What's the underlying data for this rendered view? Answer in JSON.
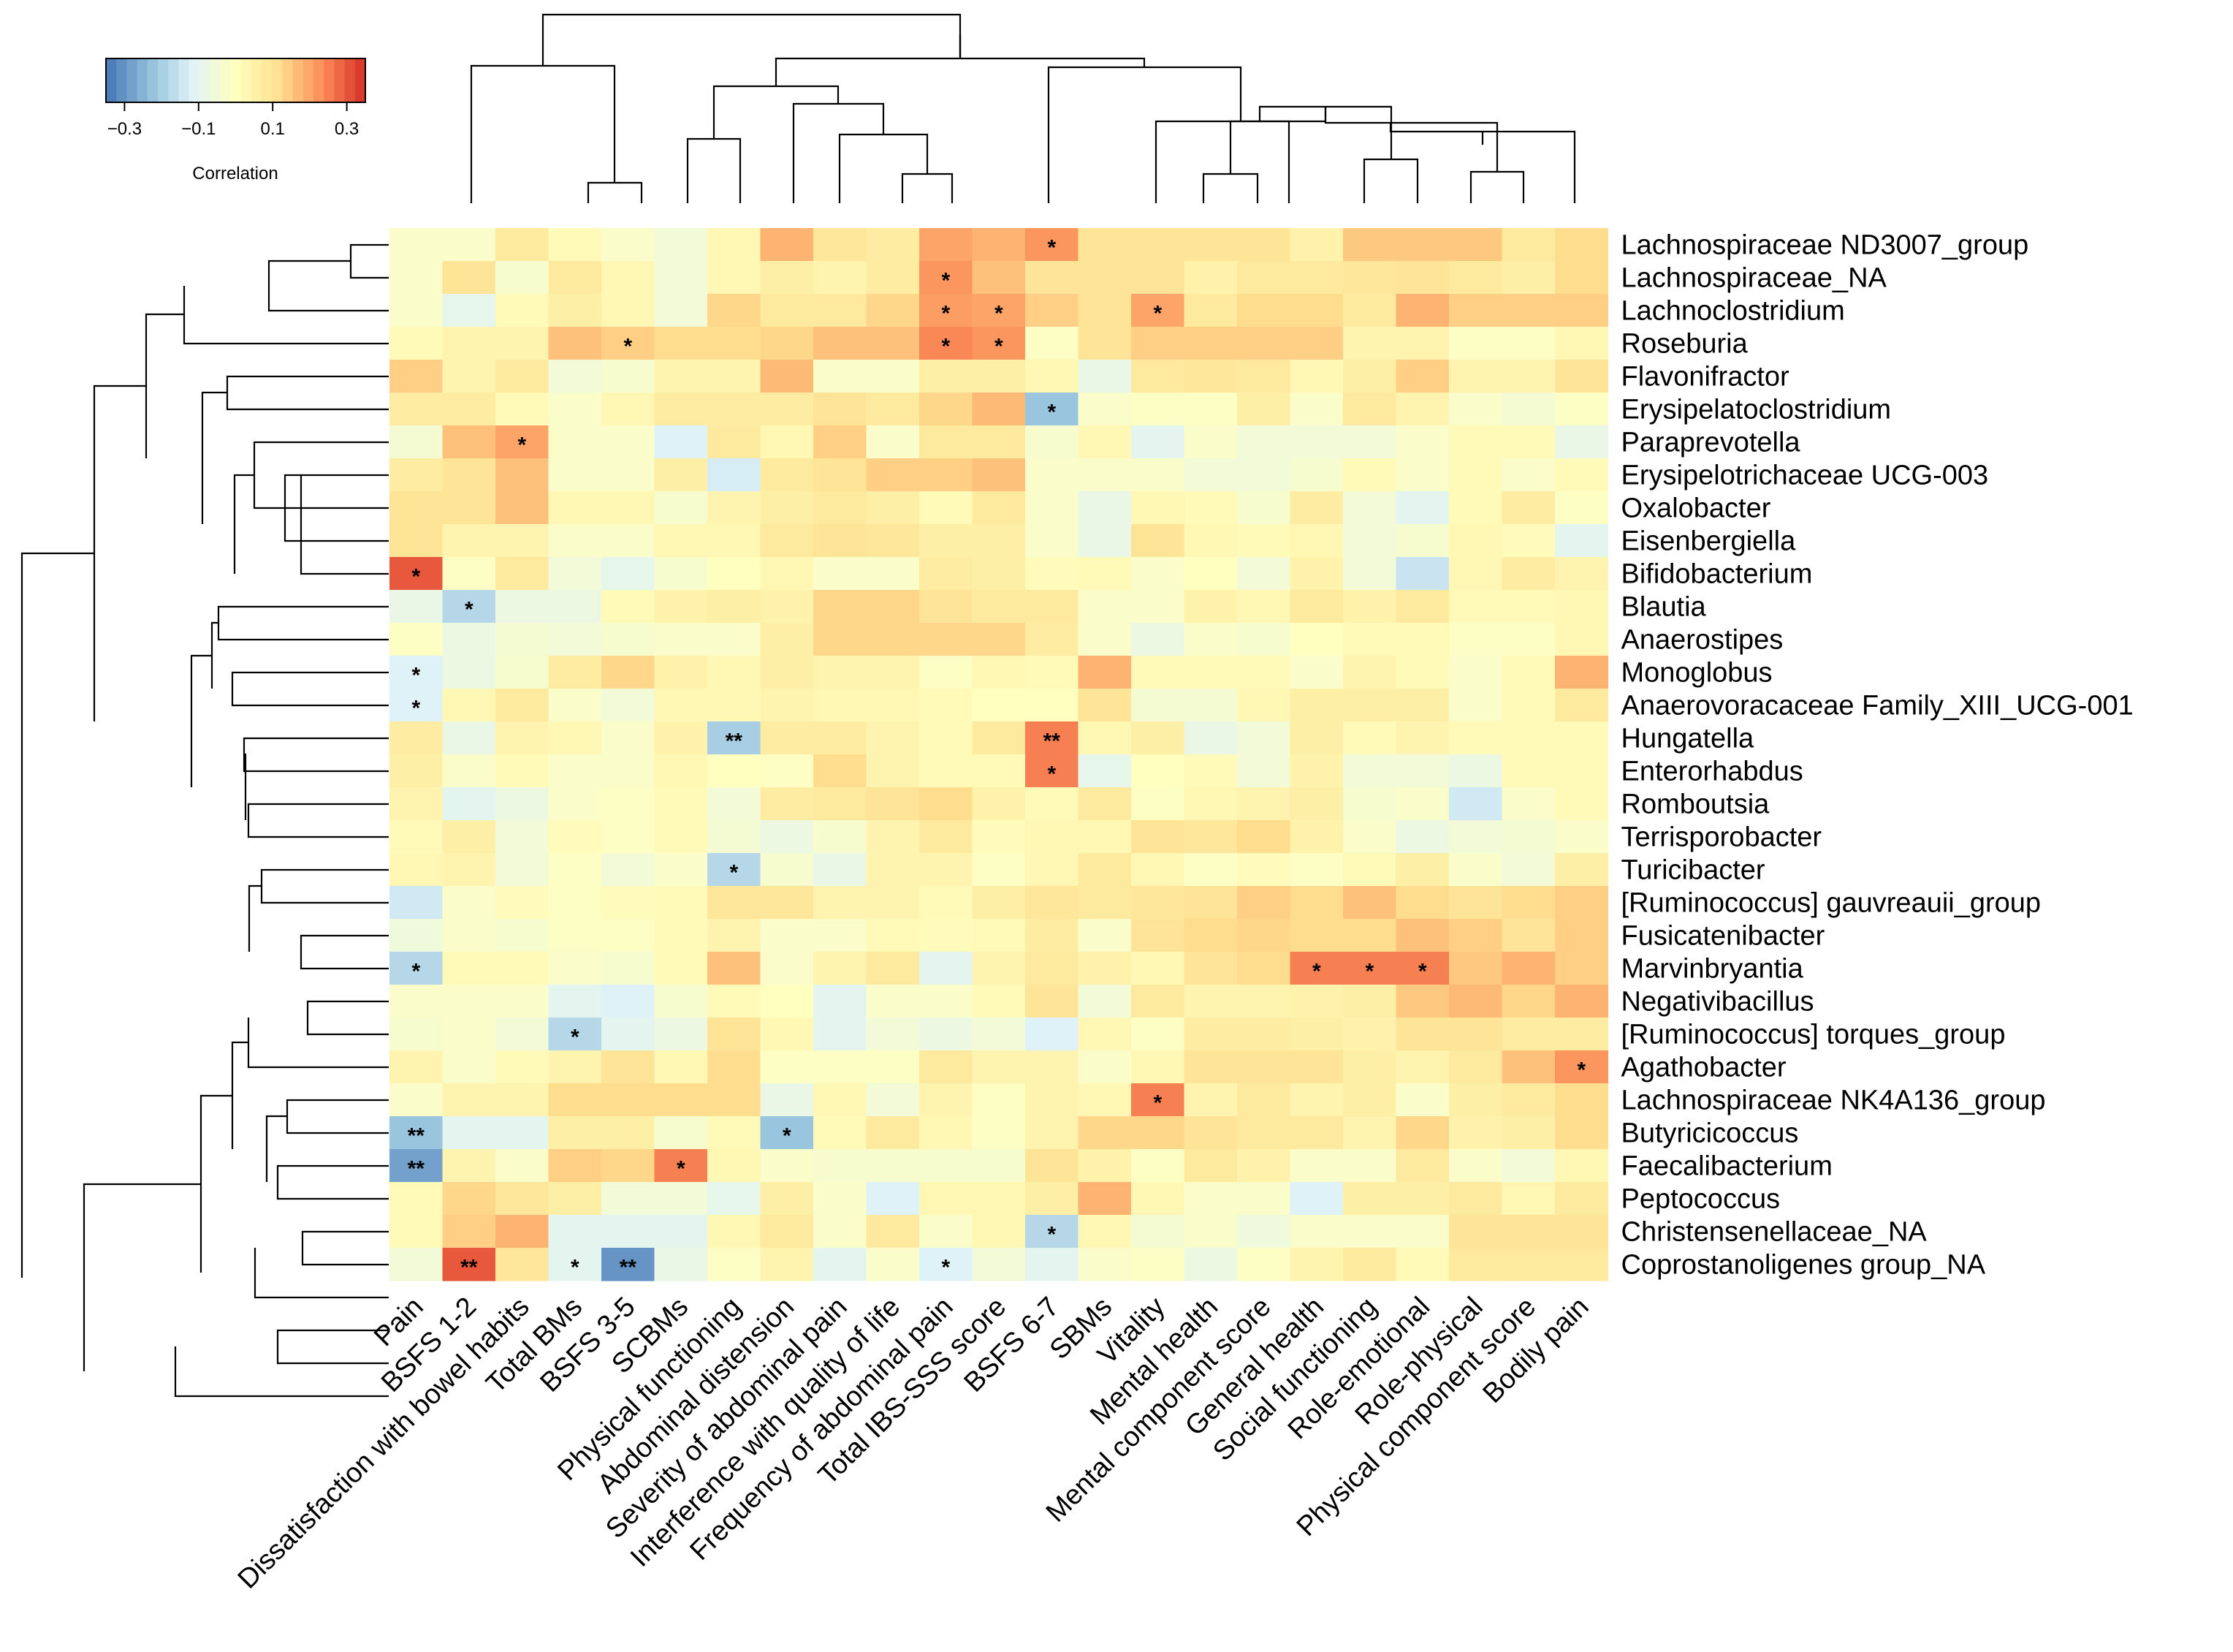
{
  "chart_data": {
    "type": "heatmap",
    "title": "",
    "legend": {
      "title": "Correlation",
      "ticks": [
        "-0.3",
        "-0.1",
        "0.1",
        "0.3"
      ],
      "range": [
        -0.35,
        0.35
      ]
    },
    "columns": [
      "Pain",
      "BSFS 1-2",
      "Dissatisfaction with bowel habits",
      "Total BMs",
      "BSFS 3-5",
      "SCBMs",
      "Physical functioning",
      "Abdominal distension",
      "Severity of abdominal pain",
      "Interference with quality of life",
      "Frequency of abdominal pain",
      "Total IBS-SSS score",
      "BSFS 6-7",
      "SBMs",
      "Vitality",
      "Mental health",
      "Mental component score",
      "General health",
      "Social functioning",
      "Role-emotional",
      "Role-physical",
      "Physical component score",
      "Bodily pain"
    ],
    "rows": [
      "Lachnospiraceae ND3007_group",
      "Lachnospiraceae_NA",
      "Lachnoclostridium",
      "Roseburia",
      "Flavonifractor",
      "Erysipelatoclostridium",
      "Paraprevotella",
      "Erysipelotrichaceae UCG-003",
      "Oxalobacter",
      "Eisenbergiella",
      "Bifidobacterium",
      "Blautia",
      "Anaerostipes",
      "Monoglobus",
      "Anaerovoracaceae Family_XIII_UCG-001",
      "Hungatella",
      "Enterorhabdus",
      "Romboutsia",
      "Terrisporobacter",
      "Turicibacter",
      "[Ruminococcus] gauvreauii_group",
      "Fusicatenibacter",
      "Marvinbryantia",
      "Negativibacillus",
      "[Ruminococcus] torques_group",
      "Agathobacter",
      "Lachnospiraceae NK4A136_group",
      "Butyricicoccus",
      "Faecalibacterium",
      "Peptococcus",
      "Christensenellaceae_NA",
      "Coprostanoligenes group_NA"
    ],
    "values": [
      [
        -0.02,
        -0.02,
        0.08,
        0.02,
        -0.02,
        -0.05,
        0.03,
        0.18,
        0.09,
        0.07,
        0.2,
        0.18,
        0.22,
        0.1,
        0.1,
        0.1,
        0.1,
        0.05,
        0.15,
        0.15,
        0.15,
        0.08,
        0.12
      ],
      [
        -0.02,
        0.1,
        -0.03,
        0.08,
        0.03,
        -0.05,
        0.03,
        0.06,
        0.04,
        0.07,
        0.22,
        0.16,
        0.1,
        0.1,
        0.1,
        0.05,
        0.08,
        0.08,
        0.09,
        0.1,
        0.08,
        0.06,
        0.12
      ],
      [
        -0.02,
        -0.09,
        0.02,
        0.06,
        0.03,
        -0.05,
        0.13,
        0.08,
        0.08,
        0.13,
        0.21,
        0.2,
        0.14,
        0.1,
        0.2,
        0.08,
        0.12,
        0.12,
        0.08,
        0.18,
        0.14,
        0.14,
        0.14
      ],
      [
        0.02,
        0.04,
        0.04,
        0.16,
        0.14,
        0.12,
        0.12,
        0.13,
        0.16,
        0.16,
        0.24,
        0.22,
        -0.01,
        0.1,
        0.14,
        0.14,
        0.14,
        0.14,
        0.04,
        0.04,
        -0.01,
        -0.01,
        0.03
      ],
      [
        0.14,
        0.04,
        0.08,
        -0.05,
        -0.03,
        0.04,
        0.04,
        0.17,
        -0.02,
        -0.02,
        0.06,
        0.06,
        0.03,
        -0.08,
        0.08,
        0.09,
        0.08,
        0.03,
        0.06,
        0.14,
        0.04,
        0.04,
        0.1
      ],
      [
        0.07,
        0.07,
        0.02,
        -0.02,
        0.03,
        0.07,
        0.07,
        0.07,
        0.1,
        0.08,
        0.13,
        0.17,
        -0.22,
        -0.02,
        -0.01,
        -0.01,
        0.06,
        -0.02,
        0.08,
        0.04,
        -0.02,
        -0.04,
        -0.01
      ],
      [
        -0.04,
        0.16,
        0.2,
        -0.02,
        -0.02,
        -0.12,
        0.08,
        0.03,
        0.14,
        -0.02,
        0.08,
        0.08,
        -0.03,
        0.03,
        -0.1,
        -0.02,
        -0.05,
        -0.05,
        -0.05,
        -0.02,
        0.02,
        0.02,
        -0.08
      ],
      [
        0.07,
        0.1,
        0.16,
        -0.02,
        -0.02,
        0.06,
        -0.13,
        0.08,
        0.1,
        0.14,
        0.14,
        0.16,
        -0.02,
        -0.02,
        -0.02,
        -0.05,
        -0.05,
        -0.03,
        0.02,
        -0.02,
        0.02,
        -0.02,
        0.02
      ],
      [
        0.1,
        0.1,
        0.16,
        0.03,
        0.03,
        -0.03,
        0.04,
        0.06,
        0.08,
        0.06,
        0.02,
        0.08,
        -0.02,
        -0.08,
        0.03,
        0.02,
        -0.03,
        0.07,
        -0.05,
        -0.1,
        0.02,
        0.07,
        -0.01
      ],
      [
        0.1,
        0.04,
        0.04,
        -0.02,
        -0.02,
        0.03,
        0.03,
        0.08,
        0.1,
        0.09,
        0.06,
        0.06,
        -0.02,
        -0.08,
        0.1,
        0.03,
        0.02,
        0.03,
        -0.05,
        -0.03,
        0.03,
        0.01,
        -0.1
      ],
      [
        0.3,
        -0.01,
        0.08,
        -0.05,
        -0.09,
        -0.03,
        0.0,
        0.03,
        -0.02,
        -0.02,
        0.07,
        0.06,
        0.01,
        0.02,
        -0.02,
        0.0,
        -0.05,
        0.05,
        -0.05,
        -0.15,
        0.03,
        0.07,
        0.04
      ],
      [
        -0.08,
        -0.18,
        -0.07,
        -0.07,
        0.02,
        0.05,
        0.06,
        0.05,
        0.13,
        0.13,
        0.1,
        0.08,
        0.08,
        -0.02,
        -0.02,
        0.05,
        0.03,
        0.08,
        0.05,
        0.08,
        0.02,
        0.02,
        0.03
      ],
      [
        -0.01,
        -0.07,
        -0.04,
        -0.05,
        -0.03,
        -0.02,
        -0.02,
        0.06,
        0.13,
        0.13,
        0.13,
        0.13,
        0.07,
        -0.02,
        -0.07,
        -0.02,
        -0.03,
        0.0,
        0.02,
        0.02,
        -0.01,
        -0.01,
        0.03
      ],
      [
        -0.12,
        -0.07,
        -0.03,
        0.07,
        0.13,
        0.05,
        0.03,
        0.06,
        0.04,
        0.04,
        -0.01,
        0.03,
        0.02,
        0.18,
        0.02,
        0.02,
        0.02,
        -0.02,
        0.04,
        0.02,
        -0.02,
        0.02,
        0.18
      ],
      [
        -0.12,
        0.03,
        0.08,
        -0.02,
        -0.05,
        0.03,
        0.03,
        0.04,
        0.03,
        0.03,
        0.02,
        0.0,
        0.0,
        0.1,
        -0.04,
        -0.04,
        0.03,
        0.06,
        0.06,
        0.06,
        -0.02,
        0.02,
        0.08
      ],
      [
        0.07,
        -0.08,
        0.04,
        0.03,
        -0.02,
        0.05,
        -0.2,
        0.07,
        0.07,
        0.04,
        0.02,
        0.08,
        0.25,
        0.03,
        0.06,
        -0.08,
        -0.05,
        0.06,
        0.02,
        0.04,
        0.02,
        0.02,
        0.02
      ],
      [
        0.06,
        -0.02,
        0.02,
        -0.02,
        -0.02,
        0.03,
        0.0,
        -0.01,
        0.12,
        0.04,
        0.02,
        0.02,
        0.25,
        -0.09,
        0.0,
        0.02,
        -0.05,
        0.05,
        -0.05,
        -0.05,
        -0.07,
        0.02,
        0.02
      ],
      [
        0.04,
        -0.1,
        -0.07,
        -0.02,
        -0.01,
        0.02,
        -0.05,
        0.07,
        0.08,
        0.1,
        0.12,
        0.05,
        0.02,
        0.08,
        -0.01,
        0.03,
        0.04,
        0.06,
        -0.03,
        -0.02,
        -0.14,
        -0.02,
        0.02
      ],
      [
        0.02,
        0.06,
        -0.05,
        0.01,
        -0.01,
        0.02,
        -0.04,
        -0.07,
        -0.03,
        0.04,
        0.08,
        0.01,
        0.03,
        0.03,
        0.1,
        0.09,
        0.12,
        0.05,
        -0.02,
        -0.07,
        -0.05,
        -0.04,
        -0.02
      ],
      [
        0.03,
        0.04,
        -0.05,
        -0.01,
        -0.05,
        -0.02,
        -0.18,
        -0.03,
        -0.08,
        0.04,
        0.04,
        -0.01,
        0.03,
        0.08,
        0.03,
        -0.01,
        0.01,
        -0.01,
        0.02,
        0.06,
        -0.02,
        -0.05,
        0.06
      ],
      [
        -0.14,
        -0.02,
        0.01,
        -0.01,
        0.01,
        0.02,
        0.09,
        0.09,
        0.04,
        0.04,
        0.02,
        0.06,
        0.09,
        0.08,
        0.09,
        0.1,
        0.14,
        0.12,
        0.16,
        0.12,
        0.1,
        0.12,
        0.14
      ],
      [
        -0.06,
        -0.02,
        -0.03,
        -0.01,
        -0.01,
        0.02,
        0.04,
        -0.02,
        -0.02,
        0.02,
        0.01,
        0.02,
        0.07,
        -0.02,
        0.1,
        0.12,
        0.13,
        0.12,
        0.12,
        0.16,
        0.14,
        0.1,
        0.14
      ],
      [
        -0.18,
        0.02,
        0.02,
        -0.02,
        -0.03,
        0.02,
        0.16,
        -0.02,
        0.04,
        0.08,
        -0.1,
        0.04,
        0.08,
        0.05,
        0.03,
        0.1,
        0.12,
        0.25,
        0.25,
        0.25,
        0.15,
        0.18,
        0.14
      ],
      [
        -0.02,
        -0.02,
        -0.02,
        -0.1,
        -0.12,
        -0.03,
        0.02,
        0.0,
        -0.1,
        -0.02,
        -0.02,
        0.02,
        0.1,
        -0.05,
        0.08,
        0.04,
        0.04,
        0.05,
        0.06,
        0.15,
        0.17,
        0.13,
        0.18
      ],
      [
        -0.03,
        -0.02,
        -0.05,
        -0.18,
        -0.1,
        -0.07,
        0.1,
        0.03,
        -0.1,
        -0.05,
        -0.07,
        -0.05,
        -0.12,
        0.03,
        -0.01,
        0.07,
        0.07,
        0.06,
        0.05,
        0.1,
        0.1,
        0.07,
        0.07
      ],
      [
        0.04,
        -0.02,
        0.02,
        0.04,
        0.1,
        0.03,
        0.12,
        -0.01,
        -0.01,
        -0.01,
        0.08,
        0.04,
        0.04,
        -0.02,
        0.03,
        0.1,
        0.1,
        0.1,
        0.06,
        0.04,
        0.08,
        0.16,
        0.22
      ],
      [
        -0.02,
        0.04,
        0.04,
        0.12,
        0.12,
        0.12,
        0.12,
        -0.08,
        0.03,
        -0.05,
        0.04,
        -0.01,
        0.04,
        0.03,
        0.25,
        0.04,
        0.08,
        0.04,
        0.06,
        -0.02,
        0.06,
        0.08,
        0.12
      ],
      [
        -0.22,
        -0.1,
        -0.1,
        0.06,
        0.06,
        -0.03,
        0.02,
        -0.22,
        0.02,
        0.08,
        0.03,
        -0.01,
        0.04,
        0.13,
        0.13,
        0.1,
        0.08,
        0.08,
        0.04,
        0.13,
        0.05,
        0.06,
        0.12
      ],
      [
        -0.28,
        0.04,
        -0.02,
        0.14,
        0.13,
        0.25,
        0.03,
        -0.02,
        -0.03,
        -0.03,
        -0.03,
        -0.03,
        0.1,
        0.05,
        -0.01,
        0.08,
        0.05,
        -0.02,
        -0.02,
        0.08,
        -0.02,
        -0.05,
        0.03
      ],
      [
        0.02,
        0.13,
        0.09,
        0.06,
        -0.05,
        -0.05,
        -0.09,
        0.06,
        -0.02,
        -0.12,
        0.03,
        0.03,
        0.06,
        0.18,
        0.03,
        -0.02,
        -0.02,
        -0.12,
        0.06,
        0.06,
        0.08,
        0.03,
        0.08
      ],
      [
        0.02,
        0.14,
        0.18,
        -0.1,
        -0.1,
        -0.1,
        0.03,
        0.08,
        -0.02,
        0.08,
        -0.02,
        0.03,
        -0.18,
        0.03,
        -0.04,
        -0.02,
        -0.06,
        -0.02,
        -0.02,
        -0.02,
        0.1,
        0.1,
        0.1
      ],
      [
        -0.05,
        0.3,
        0.09,
        -0.1,
        -0.3,
        -0.08,
        -0.01,
        0.04,
        -0.1,
        -0.02,
        -0.12,
        -0.05,
        -0.1,
        -0.02,
        -0.01,
        -0.07,
        -0.01,
        0.04,
        0.08,
        0.02,
        0.08,
        0.08,
        0.08
      ]
    ],
    "significance": [
      {
        "row": 0,
        "col": 12,
        "mark": "*"
      },
      {
        "row": 1,
        "col": 10,
        "mark": "*"
      },
      {
        "row": 2,
        "col": 10,
        "mark": "*"
      },
      {
        "row": 2,
        "col": 11,
        "mark": "*"
      },
      {
        "row": 2,
        "col": 14,
        "mark": "*"
      },
      {
        "row": 3,
        "col": 4,
        "mark": "*"
      },
      {
        "row": 3,
        "col": 10,
        "mark": "*"
      },
      {
        "row": 3,
        "col": 11,
        "mark": "*"
      },
      {
        "row": 5,
        "col": 12,
        "mark": "*"
      },
      {
        "row": 6,
        "col": 2,
        "mark": "*"
      },
      {
        "row": 10,
        "col": 0,
        "mark": "*"
      },
      {
        "row": 11,
        "col": 1,
        "mark": "*"
      },
      {
        "row": 13,
        "col": 0,
        "mark": "*"
      },
      {
        "row": 14,
        "col": 0,
        "mark": "*"
      },
      {
        "row": 15,
        "col": 6,
        "mark": "**"
      },
      {
        "row": 15,
        "col": 12,
        "mark": "**"
      },
      {
        "row": 16,
        "col": 12,
        "mark": "*"
      },
      {
        "row": 19,
        "col": 6,
        "mark": "*"
      },
      {
        "row": 22,
        "col": 0,
        "mark": "*"
      },
      {
        "row": 22,
        "col": 17,
        "mark": "*"
      },
      {
        "row": 22,
        "col": 18,
        "mark": "*"
      },
      {
        "row": 22,
        "col": 19,
        "mark": "*"
      },
      {
        "row": 24,
        "col": 3,
        "mark": "*"
      },
      {
        "row": 25,
        "col": 22,
        "mark": "*"
      },
      {
        "row": 26,
        "col": 14,
        "mark": "*"
      },
      {
        "row": 27,
        "col": 0,
        "mark": "**"
      },
      {
        "row": 27,
        "col": 7,
        "mark": "*"
      },
      {
        "row": 28,
        "col": 0,
        "mark": "**"
      },
      {
        "row": 28,
        "col": 5,
        "mark": "*"
      },
      {
        "row": 30,
        "col": 12,
        "mark": "*"
      },
      {
        "row": 31,
        "col": 1,
        "mark": "**"
      },
      {
        "row": 31,
        "col": 3,
        "mark": "*"
      },
      {
        "row": 31,
        "col": 4,
        "mark": "**"
      },
      {
        "row": 31,
        "col": 10,
        "mark": "*"
      }
    ],
    "color_scale": [
      "#4575b4",
      "#91bfdb",
      "#e0f3f8",
      "#ffffbf",
      "#fee090",
      "#fc8d59",
      "#d73027"
    ]
  }
}
